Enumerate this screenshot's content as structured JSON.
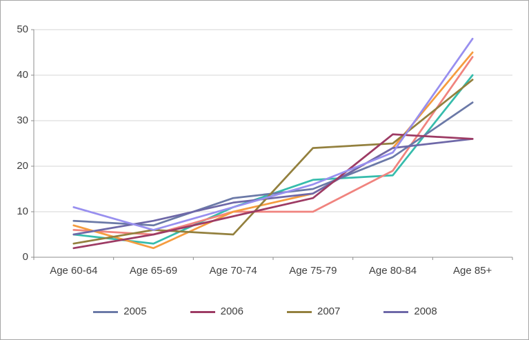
{
  "chart_data": {
    "type": "line",
    "title": "",
    "xlabel": "",
    "ylabel": "",
    "categories": [
      "Age 60-64",
      "Age 65-69",
      "Age 70-74",
      "Age 75-79",
      "Age 80-84",
      "Age 85+"
    ],
    "series": [
      {
        "name": "unlabeled-teal",
        "color": "#36BCAC",
        "in_legend": false,
        "values": [
          5,
          3,
          11,
          17,
          18,
          40
        ]
      },
      {
        "name": "unlabeled-salmon",
        "color": "#F0837E",
        "in_legend": false,
        "values": [
          6,
          5,
          10,
          10,
          19,
          44
        ]
      },
      {
        "name": "unlabeled-orange",
        "color": "#F59C3F",
        "in_legend": false,
        "values": [
          7,
          2,
          10,
          14,
          24,
          45
        ]
      },
      {
        "name": "2005",
        "color": "#6B79A7",
        "in_legend": true,
        "values": [
          8,
          7,
          13,
          15,
          22,
          34
        ]
      },
      {
        "name": "2008",
        "color": "#6E68A8",
        "in_legend": true,
        "values": [
          5,
          8,
          12,
          14,
          24,
          26
        ]
      },
      {
        "name": "2007",
        "color": "#93803E",
        "in_legend": true,
        "values": [
          3,
          6,
          5,
          24,
          25,
          39
        ]
      },
      {
        "name": "2006",
        "color": "#9D3B64",
        "in_legend": true,
        "values": [
          2,
          5,
          9,
          13,
          27,
          26
        ]
      },
      {
        "name": "unlabeled-lavender",
        "color": "#988FEF",
        "in_legend": false,
        "values": [
          11,
          6,
          11,
          16,
          23,
          48
        ]
      }
    ],
    "legend_entries": [
      "2005",
      "2006",
      "2007",
      "2008"
    ],
    "legend_position": "bottom",
    "ylim": [
      0,
      50
    ],
    "yticks": [
      "0",
      "10",
      "20",
      "30",
      "40",
      "50"
    ],
    "grid": true
  },
  "colors": {
    "grid": "#D6D6D6",
    "axis": "#8C8C8C",
    "tick": "#8C8C8C",
    "text": "#3F3F3F",
    "border": "#A6A6A6",
    "background": "#FFFFFF"
  }
}
